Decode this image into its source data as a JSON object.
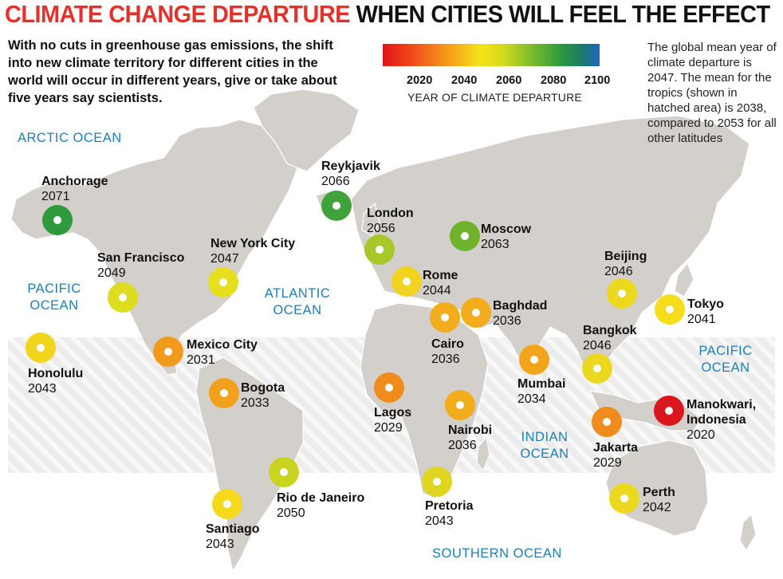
{
  "title": {
    "part1": "CLIMATE CHANGE DEPARTURE",
    "part2": "WHEN CITIES WILL FEEL THE EFFECT"
  },
  "intro": "With no cuts in greenhouse gas emissions, the shift into new climate territory for different cities in the world will occur  in different years, give or take about five years say scientists.",
  "side_note": "The global mean year of climate departure is 2047. The mean for the tropics (shown in hatched area) is 2038, compared to 2053 for all other latitudes",
  "legend": {
    "ticks": [
      "2020",
      "2040",
      "2060",
      "2080",
      "2100"
    ],
    "label": "YEAR OF CLIMATE DEPARTURE"
  },
  "oceans": {
    "arctic": "ARCTIC OCEAN",
    "pacific_west_1": "PACIFIC",
    "pacific_west_2": "OCEAN",
    "atlantic_1": "ATLANTIC",
    "atlantic_2": "OCEAN",
    "pacific_east_1": "PACIFIC",
    "pacific_east_2": "OCEAN",
    "indian_1": "INDIAN",
    "indian_2": "OCEAN",
    "southern": "SOUTHERN OCEAN"
  },
  "cities": [
    {
      "name": "Anchorage",
      "year": "2071",
      "color": "#2e9a3c"
    },
    {
      "name": "Reykjavik",
      "year": "2066",
      "color": "#3fa23a"
    },
    {
      "name": "London",
      "year": "2056",
      "color": "#a8c82a"
    },
    {
      "name": "Moscow",
      "year": "2063",
      "color": "#6fb32c"
    },
    {
      "name": "New York City",
      "year": "2047",
      "color": "#e6df1f"
    },
    {
      "name": "San Francisco",
      "year": "2049",
      "color": "#dedc1f"
    },
    {
      "name": "Rome",
      "year": "2044",
      "color": "#f1d21e"
    },
    {
      "name": "Beijing",
      "year": "2046",
      "color": "#ecd91f"
    },
    {
      "name": "Baghdad",
      "year": "2036",
      "color": "#f2ac1c"
    },
    {
      "name": "Tokyo",
      "year": "2041",
      "color": "#f6dd1b"
    },
    {
      "name": "Bangkok",
      "year": "2046",
      "color": "#ecd91f"
    },
    {
      "name": "Honolulu",
      "year": "2043",
      "color": "#f1d51e"
    },
    {
      "name": "Mexico City",
      "year": "2031",
      "color": "#f19a1b"
    },
    {
      "name": "Cairo",
      "year": "2036",
      "color": "#f2ac1c"
    },
    {
      "name": "Bogota",
      "year": "2033",
      "color": "#f1a11b"
    },
    {
      "name": "Mumbai",
      "year": "2034",
      "color": "#f2a41b"
    },
    {
      "name": "Lagos",
      "year": "2029",
      "color": "#ef8c1b"
    },
    {
      "name": "Nairobi",
      "year": "2036",
      "color": "#f2ac1c"
    },
    {
      "name": "Jakarta",
      "year": "2029",
      "color": "#ef8c1b"
    },
    {
      "name": "Manokwari,\nIndonesia",
      "year": "2020",
      "color": "#d9171c"
    },
    {
      "name": "Rio de Janeiro",
      "year": "2050",
      "color": "#c9d421"
    },
    {
      "name": "Pretoria",
      "year": "2043",
      "color": "#e0d61f"
    },
    {
      "name": "Perth",
      "year": "2042",
      "color": "#ecd81e"
    },
    {
      "name": "Santiago",
      "year": "2043",
      "color": "#f4d91c"
    }
  ]
}
